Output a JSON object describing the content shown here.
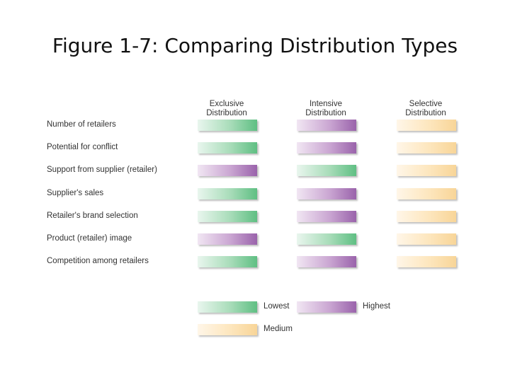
{
  "title": "Figure 1-7: Comparing Distribution Types",
  "columns": [
    {
      "line1": "Exclusive",
      "line2": "Distribution"
    },
    {
      "line1": "Intensive",
      "line2": "Distribution"
    },
    {
      "line1": "Selective",
      "line2": "Distribution"
    }
  ],
  "rows": [
    {
      "label": "Number of retailers",
      "levels": [
        "lowest",
        "highest",
        "medium"
      ]
    },
    {
      "label": "Potential for conflict",
      "levels": [
        "lowest",
        "highest",
        "medium"
      ]
    },
    {
      "label": "Support from supplier (retailer)",
      "levels": [
        "highest",
        "lowest",
        "medium"
      ]
    },
    {
      "label": "Supplier's sales",
      "levels": [
        "lowest",
        "highest",
        "medium"
      ]
    },
    {
      "label": "Retailer's brand selection",
      "levels": [
        "lowest",
        "highest",
        "medium"
      ]
    },
    {
      "label": "Product (retailer) image",
      "levels": [
        "highest",
        "lowest",
        "medium"
      ]
    },
    {
      "label": "Competition among retailers",
      "levels": [
        "lowest",
        "highest",
        "medium"
      ]
    }
  ],
  "legend": {
    "lowest": "Lowest",
    "highest": "Highest",
    "medium": "Medium"
  },
  "colors": {
    "lowest": "#5fbf83",
    "highest": "#9a63ab",
    "medium": "#f8d598"
  }
}
